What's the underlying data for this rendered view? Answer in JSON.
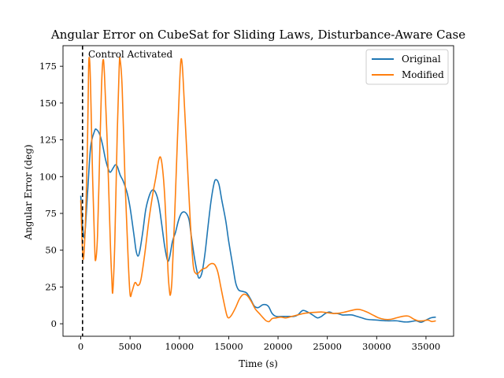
{
  "chart_data": {
    "type": "line",
    "title": "Angular Error on CubeSat for Sliding Laws, Disturbance-Aware Case",
    "xlabel": "Time (s)",
    "ylabel": "Angular Error (deg)",
    "xlim": [
      -1800,
      37800
    ],
    "ylim": [
      -8.5,
      189
    ],
    "xticks": [
      0,
      5000,
      10000,
      15000,
      20000,
      25000,
      30000,
      35000
    ],
    "xtick_labels": [
      "0",
      "5000",
      "10000",
      "15000",
      "20000",
      "25000",
      "30000",
      "35000"
    ],
    "yticks": [
      0,
      25,
      50,
      75,
      100,
      125,
      150,
      175
    ],
    "ytick_labels": [
      "0",
      "25",
      "50",
      "75",
      "100",
      "125",
      "150",
      "175"
    ],
    "grid": false,
    "legend_position": "upper right",
    "annotation": {
      "x": 180,
      "label": "Control Activated",
      "style": "dashed vertical line"
    },
    "series": [
      {
        "name": "Original",
        "color": "#1f77b4",
        "points": [
          [
            0,
            87
          ],
          [
            200,
            65
          ],
          [
            400,
            60
          ],
          [
            700,
            90
          ],
          [
            1000,
            120
          ],
          [
            1400,
            131
          ],
          [
            1600,
            132
          ],
          [
            1900,
            129
          ],
          [
            2200,
            122
          ],
          [
            2500,
            112
          ],
          [
            2800,
            105
          ],
          [
            3000,
            103
          ],
          [
            3300,
            106
          ],
          [
            3500,
            108
          ],
          [
            3700,
            107
          ],
          [
            4000,
            101
          ],
          [
            4300,
            97
          ],
          [
            4700,
            89
          ],
          [
            5000,
            79
          ],
          [
            5400,
            60
          ],
          [
            5600,
            50
          ],
          [
            5800,
            46
          ],
          [
            6000,
            50
          ],
          [
            6300,
            63
          ],
          [
            6600,
            78
          ],
          [
            7000,
            88
          ],
          [
            7300,
            91
          ],
          [
            7600,
            89
          ],
          [
            7900,
            82
          ],
          [
            8200,
            68
          ],
          [
            8500,
            53
          ],
          [
            8800,
            43
          ],
          [
            9000,
            45
          ],
          [
            9300,
            56
          ],
          [
            9600,
            62
          ],
          [
            9900,
            70
          ],
          [
            10200,
            75
          ],
          [
            10500,
            76
          ],
          [
            10800,
            74
          ],
          [
            11000,
            70
          ],
          [
            11200,
            60
          ],
          [
            11500,
            46
          ],
          [
            11800,
            35
          ],
          [
            12000,
            31
          ],
          [
            12300,
            35
          ],
          [
            12600,
            48
          ],
          [
            12900,
            66
          ],
          [
            13200,
            83
          ],
          [
            13500,
            95
          ],
          [
            13700,
            98
          ],
          [
            14000,
            95
          ],
          [
            14300,
            84
          ],
          [
            14700,
            70
          ],
          [
            15000,
            56
          ],
          [
            15400,
            40
          ],
          [
            15700,
            28
          ],
          [
            16000,
            23
          ],
          [
            16400,
            22
          ],
          [
            16800,
            21
          ],
          [
            17200,
            17
          ],
          [
            17600,
            12
          ],
          [
            18000,
            11
          ],
          [
            18500,
            13
          ],
          [
            19000,
            12
          ],
          [
            19400,
            7
          ],
          [
            19800,
            5
          ],
          [
            20400,
            5
          ],
          [
            21000,
            5
          ],
          [
            21600,
            5
          ],
          [
            22000,
            6
          ],
          [
            22500,
            9
          ],
          [
            23000,
            8
          ],
          [
            23500,
            6
          ],
          [
            24000,
            4
          ],
          [
            24400,
            5
          ],
          [
            24800,
            7
          ],
          [
            25200,
            8
          ],
          [
            25600,
            7
          ],
          [
            26000,
            7
          ],
          [
            26500,
            6
          ],
          [
            27000,
            6
          ],
          [
            27500,
            6
          ],
          [
            28000,
            5
          ],
          [
            28500,
            4
          ],
          [
            29000,
            3
          ],
          [
            30000,
            2.5
          ],
          [
            31000,
            2
          ],
          [
            32000,
            2
          ],
          [
            32500,
            1.5
          ],
          [
            33000,
            1.2
          ],
          [
            33500,
            1.5
          ],
          [
            34000,
            2
          ],
          [
            34500,
            1
          ],
          [
            35000,
            2.5
          ],
          [
            35500,
            4
          ],
          [
            36000,
            4.5
          ]
        ]
      },
      {
        "name": "Modified",
        "color": "#ff7f0e",
        "points": [
          [
            0,
            84
          ],
          [
            200,
            47
          ],
          [
            350,
            50
          ],
          [
            550,
            85
          ],
          [
            700,
            130
          ],
          [
            800,
            175
          ],
          [
            900,
            179
          ],
          [
            1000,
            160
          ],
          [
            1200,
            100
          ],
          [
            1400,
            55
          ],
          [
            1500,
            43
          ],
          [
            1700,
            60
          ],
          [
            1900,
            110
          ],
          [
            2100,
            160
          ],
          [
            2250,
            179
          ],
          [
            2400,
            170
          ],
          [
            2700,
            120
          ],
          [
            3000,
            55
          ],
          [
            3150,
            30
          ],
          [
            3250,
            22
          ],
          [
            3450,
            55
          ],
          [
            3700,
            130
          ],
          [
            3900,
            175
          ],
          [
            4000,
            179
          ],
          [
            4200,
            160
          ],
          [
            4500,
            95
          ],
          [
            4800,
            45
          ],
          [
            5000,
            20
          ],
          [
            5200,
            22
          ],
          [
            5500,
            28
          ],
          [
            5800,
            26
          ],
          [
            6100,
            30
          ],
          [
            6500,
            48
          ],
          [
            6900,
            70
          ],
          [
            7300,
            88
          ],
          [
            7600,
            99
          ],
          [
            7900,
            111
          ],
          [
            8100,
            113
          ],
          [
            8300,
            105
          ],
          [
            8500,
            88
          ],
          [
            8700,
            60
          ],
          [
            8850,
            35
          ],
          [
            9000,
            22
          ],
          [
            9100,
            20
          ],
          [
            9250,
            30
          ],
          [
            9500,
            70
          ],
          [
            9800,
            125
          ],
          [
            10000,
            160
          ],
          [
            10150,
            179
          ],
          [
            10300,
            175
          ],
          [
            10500,
            150
          ],
          [
            10800,
            110
          ],
          [
            11100,
            70
          ],
          [
            11400,
            40
          ],
          [
            11700,
            34
          ],
          [
            12000,
            35
          ],
          [
            12300,
            37
          ],
          [
            12700,
            38
          ],
          [
            13000,
            40
          ],
          [
            13300,
            41
          ],
          [
            13600,
            40
          ],
          [
            13900,
            35
          ],
          [
            14200,
            25
          ],
          [
            14500,
            15
          ],
          [
            14800,
            6
          ],
          [
            15000,
            4
          ],
          [
            15300,
            6
          ],
          [
            15700,
            11
          ],
          [
            16100,
            17
          ],
          [
            16500,
            20
          ],
          [
            16900,
            19
          ],
          [
            17300,
            15
          ],
          [
            17700,
            10
          ],
          [
            18100,
            7
          ],
          [
            18500,
            4
          ],
          [
            18800,
            2
          ],
          [
            19100,
            1.5
          ],
          [
            19400,
            3.5
          ],
          [
            19800,
            4
          ],
          [
            20300,
            4.5
          ],
          [
            20800,
            4
          ],
          [
            21400,
            5
          ],
          [
            22000,
            6
          ],
          [
            22600,
            7
          ],
          [
            23200,
            7.5
          ],
          [
            23800,
            7.8
          ],
          [
            24400,
            8
          ],
          [
            25000,
            7.5
          ],
          [
            25600,
            7
          ],
          [
            26200,
            7.2
          ],
          [
            26800,
            8
          ],
          [
            27400,
            9
          ],
          [
            28000,
            9.8
          ],
          [
            28400,
            9.5
          ],
          [
            29000,
            8
          ],
          [
            29600,
            6
          ],
          [
            30200,
            4
          ],
          [
            30800,
            3
          ],
          [
            31400,
            3
          ],
          [
            32000,
            4
          ],
          [
            32600,
            5
          ],
          [
            33200,
            5.2
          ],
          [
            33800,
            3
          ],
          [
            34200,
            2
          ],
          [
            34700,
            2
          ],
          [
            35200,
            2.5
          ],
          [
            35600,
            1.5
          ],
          [
            36000,
            2
          ]
        ]
      }
    ]
  }
}
